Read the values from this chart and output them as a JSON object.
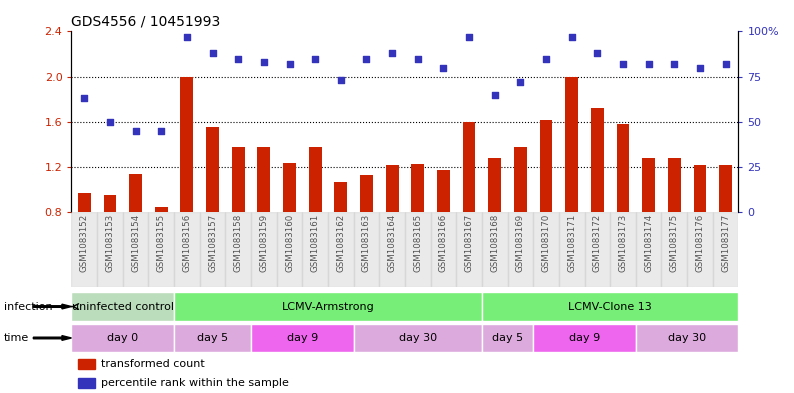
{
  "title": "GDS4556 / 10451993",
  "samples": [
    "GSM1083152",
    "GSM1083153",
    "GSM1083154",
    "GSM1083155",
    "GSM1083156",
    "GSM1083157",
    "GSM1083158",
    "GSM1083159",
    "GSM1083160",
    "GSM1083161",
    "GSM1083162",
    "GSM1083163",
    "GSM1083164",
    "GSM1083165",
    "GSM1083166",
    "GSM1083167",
    "GSM1083168",
    "GSM1083169",
    "GSM1083170",
    "GSM1083171",
    "GSM1083172",
    "GSM1083173",
    "GSM1083174",
    "GSM1083175",
    "GSM1083176",
    "GSM1083177"
  ],
  "bar_values": [
    0.97,
    0.95,
    1.14,
    0.85,
    2.0,
    1.55,
    1.38,
    1.38,
    1.24,
    1.38,
    1.07,
    1.13,
    1.22,
    1.23,
    1.17,
    1.6,
    1.28,
    1.38,
    1.62,
    2.0,
    1.72,
    1.58,
    1.28,
    1.28,
    1.22,
    1.22
  ],
  "dot_values": [
    63,
    50,
    45,
    45,
    97,
    88,
    85,
    83,
    82,
    85,
    73,
    85,
    88,
    85,
    80,
    97,
    65,
    72,
    85,
    97,
    88,
    82,
    82,
    82,
    80,
    82
  ],
  "bar_color": "#cc2200",
  "dot_color": "#3333bb",
  "ylim_left": [
    0.8,
    2.4
  ],
  "ylim_right": [
    0,
    100
  ],
  "yticks_left": [
    0.8,
    1.2,
    1.6,
    2.0,
    2.4
  ],
  "yticks_right": [
    0,
    25,
    50,
    75,
    100
  ],
  "ytick_right_labels": [
    "0",
    "25",
    "50",
    "75",
    "100%"
  ],
  "hlines": [
    1.2,
    1.6,
    2.0
  ],
  "infection_groups": [
    {
      "label": "uninfected control",
      "start": 0,
      "end": 4,
      "color": "#bbddbb"
    },
    {
      "label": "LCMV-Armstrong",
      "start": 4,
      "end": 16,
      "color": "#77ee77"
    },
    {
      "label": "LCMV-Clone 13",
      "start": 16,
      "end": 26,
      "color": "#77ee77"
    }
  ],
  "time_groups": [
    {
      "label": "day 0",
      "start": 0,
      "end": 4,
      "color": "#ddaadd"
    },
    {
      "label": "day 5",
      "start": 4,
      "end": 7,
      "color": "#ddaadd"
    },
    {
      "label": "day 9",
      "start": 7,
      "end": 11,
      "color": "#ee66ee"
    },
    {
      "label": "day 30",
      "start": 11,
      "end": 16,
      "color": "#ddaadd"
    },
    {
      "label": "day 5",
      "start": 16,
      "end": 18,
      "color": "#ddaadd"
    },
    {
      "label": "day 9",
      "start": 18,
      "end": 22,
      "color": "#ee66ee"
    },
    {
      "label": "day 30",
      "start": 22,
      "end": 26,
      "color": "#ddaadd"
    }
  ]
}
